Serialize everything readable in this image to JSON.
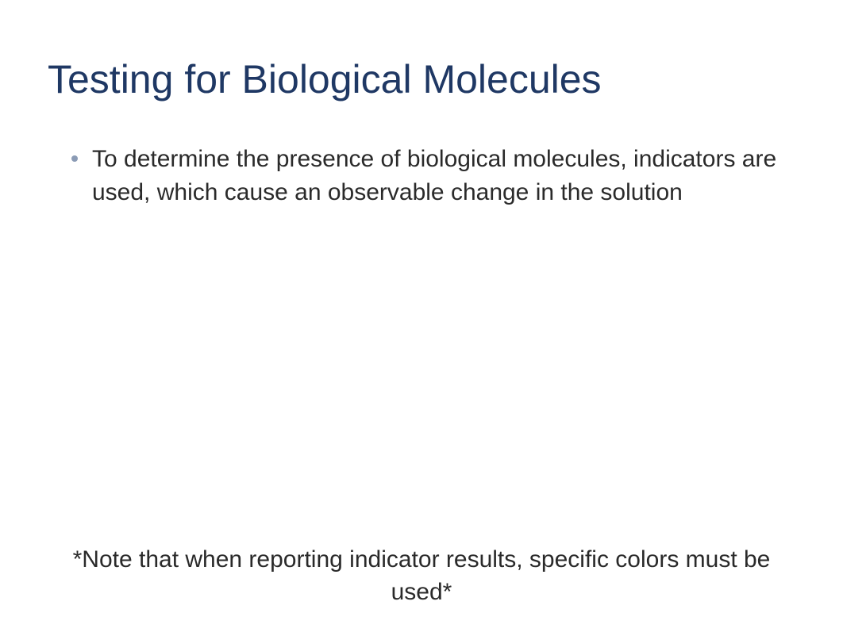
{
  "slide": {
    "title": "Testing for Biological Molecules",
    "title_color": "#1f3864",
    "title_fontsize": 50,
    "background_color": "#ffffff",
    "bullets": [
      {
        "text": "To determine the presence of biological molecules, indicators are used, which cause an observable change in the solution",
        "dot_color": "#8b9bb5"
      }
    ],
    "body_fontsize": 30,
    "body_color": "#2a2a2a",
    "footer_note": "*Note that when reporting indicator results, specific colors must be used*",
    "footer_fontsize": 30,
    "footer_color": "#2a2a2a"
  }
}
